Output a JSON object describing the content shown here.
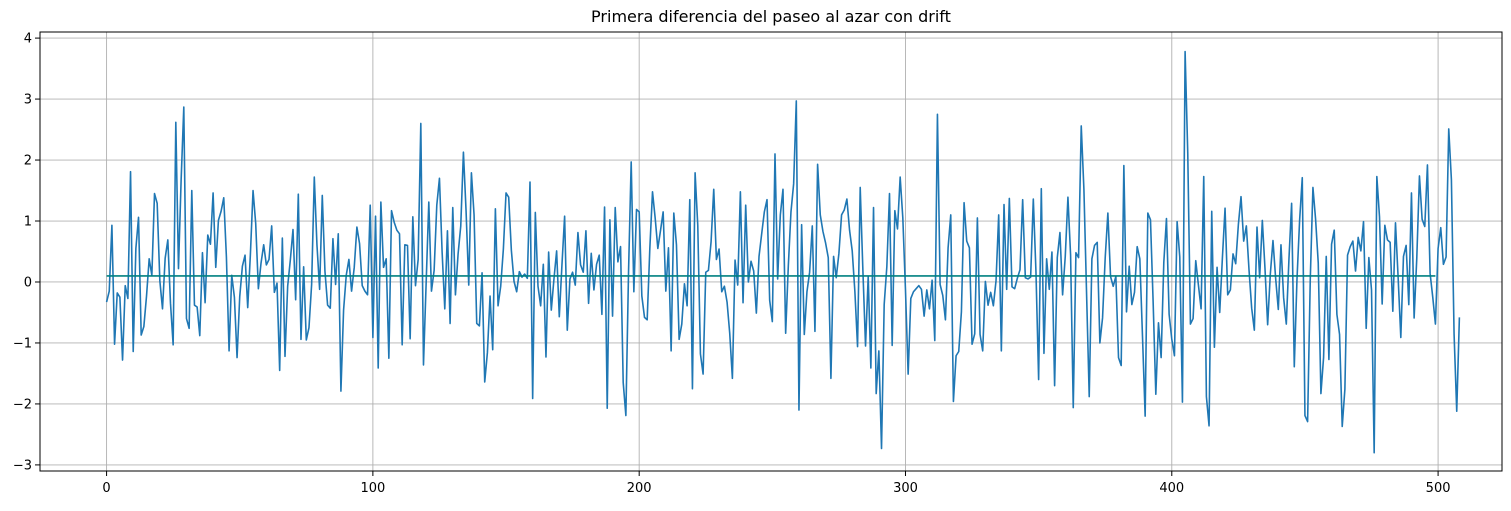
{
  "chart_data": {
    "type": "line",
    "title": "Primera diferencia del paseo al azar con drift",
    "xlabel": "",
    "ylabel": "",
    "xlim": [
      -25,
      524
    ],
    "ylim": [
      -3.1,
      4.1
    ],
    "xticks": [
      0,
      100,
      200,
      300,
      400,
      500
    ],
    "yticks": [
      -3,
      -2,
      -1,
      0,
      1,
      2,
      3,
      4
    ],
    "grid": true,
    "colors": {
      "series": "#1f77b4",
      "drift": "#008080",
      "grid": "#b0b0b0",
      "axes": "#000000"
    },
    "series": [
      {
        "x_start": 0,
        "values": [
          -0.33,
          -0.15,
          0.93,
          -1.02,
          -0.18,
          -0.25,
          -1.28,
          -0.06,
          -0.27,
          1.81,
          -1.14,
          0.55,
          1.06,
          -0.87,
          -0.73,
          -0.23,
          0.38,
          0.11,
          1.45,
          1.29,
          0.02,
          -0.44,
          0.39,
          0.69,
          -0.35,
          -1.03,
          2.62,
          0.22,
          1.68,
          2.87,
          -0.6,
          -0.76,
          1.5,
          -0.38,
          -0.41,
          -0.88,
          0.48,
          -0.34,
          0.77,
          0.62,
          1.46,
          0.24,
          1.01,
          1.16,
          1.38,
          0.41,
          -1.13,
          0.11,
          -0.25,
          -1.24,
          -0.24,
          0.26,
          0.44,
          -0.42,
          0.45,
          1.5,
          0.96,
          -0.11,
          0.31,
          0.61,
          0.28,
          0.37,
          0.92,
          -0.17,
          -0.02,
          -1.45,
          0.72,
          -1.22,
          -0.07,
          0.36,
          0.86,
          -0.29,
          1.44,
          -0.94,
          0.25,
          -0.95,
          -0.75,
          -0.04,
          1.72,
          0.61,
          -0.12,
          1.42,
          0.18,
          -0.38,
          -0.43,
          0.71,
          -0.04,
          0.79,
          -1.79,
          -0.46,
          0.11,
          0.37,
          -0.15,
          0.24,
          0.9,
          0.63,
          -0.06,
          -0.15,
          -0.21,
          1.26,
          -0.91,
          1.08,
          -1.41,
          1.31,
          0.24,
          0.38,
          -1.25,
          1.17,
          0.98,
          0.85,
          0.79,
          -1.03,
          0.61,
          0.6,
          -0.93,
          1.07,
          -0.06,
          0.37,
          2.6,
          -1.36,
          -0.02,
          1.31,
          -0.15,
          0.19,
          1.26,
          1.7,
          0.49,
          -0.44,
          0.84,
          -0.68,
          1.22,
          -0.21,
          0.46,
          0.92,
          2.13,
          1.16,
          -0.05,
          1.79,
          1.1,
          -0.68,
          -0.72,
          0.15,
          -1.64,
          -1.16,
          -0.23,
          -1.11,
          1.2,
          -0.39,
          -0.07,
          0.54,
          1.46,
          1.39,
          0.52,
          0.01,
          -0.16,
          0.17,
          0.08,
          0.13,
          0.06,
          1.64,
          -1.91,
          1.14,
          -0.07,
          -0.39,
          0.29,
          -1.23,
          0.49,
          -0.46,
          0.05,
          0.51,
          -0.57,
          0.28,
          1.08,
          -0.79,
          0.05,
          0.16,
          -0.05,
          0.81,
          0.28,
          0.16,
          0.84,
          -0.35,
          0.47,
          -0.13,
          0.29,
          0.44,
          -0.53,
          1.23,
          -2.07,
          1.02,
          -0.56,
          1.22,
          0.33,
          0.58,
          -1.65,
          -2.19,
          0.16,
          1.97,
          -0.16,
          1.19,
          1.15,
          -0.23,
          -0.58,
          -0.62,
          0.55,
          1.48,
          1.05,
          0.55,
          0.84,
          1.15,
          -0.15,
          0.56,
          -1.13,
          1.13,
          0.61,
          -0.94,
          -0.69,
          -0.03,
          -0.39,
          1.35,
          -1.75,
          1.79,
          0.93,
          -1.18,
          -1.51,
          0.16,
          0.19,
          0.66,
          1.52,
          0.37,
          0.54,
          -0.16,
          -0.07,
          -0.33,
          -0.84,
          -1.58,
          0.36,
          -0.05,
          1.48,
          -0.34,
          1.26,
          0.0,
          0.34,
          0.18,
          -0.51,
          0.42,
          0.79,
          1.15,
          1.35,
          -0.3,
          -0.65,
          2.1,
          0.05,
          1.1,
          1.52,
          -0.84,
          0.26,
          1.15,
          1.61,
          2.97,
          -2.1,
          0.94,
          -0.86,
          -0.16,
          0.16,
          0.92,
          -0.81,
          1.93,
          1.1,
          0.83,
          0.64,
          0.4,
          -1.58,
          0.42,
          0.07,
          0.47,
          1.1,
          1.18,
          1.36,
          0.85,
          0.51,
          -0.16,
          -1.06,
          1.55,
          0.2,
          -1.05,
          0.09,
          -1.41,
          1.22,
          -1.83,
          -1.13,
          -2.73,
          -0.37,
          0.25,
          1.45,
          -1.04,
          1.17,
          0.87,
          1.72,
          1.05,
          -0.13,
          -1.51,
          -0.27,
          -0.16,
          -0.11,
          -0.06,
          -0.12,
          -0.56,
          -0.13,
          -0.44,
          0.03,
          -0.96,
          2.75,
          -0.04,
          -0.22,
          -0.62,
          0.56,
          1.1,
          -1.96,
          -1.21,
          -1.14,
          -0.49,
          1.3,
          0.67,
          0.56,
          -1.02,
          -0.85,
          1.05,
          -0.86,
          -1.13,
          0.01,
          -0.38,
          -0.17,
          -0.39,
          0.02,
          1.1,
          -1.13,
          1.27,
          -0.12,
          1.37,
          -0.08,
          -0.11,
          0.06,
          0.2,
          1.35,
          0.07,
          0.05,
          0.08,
          1.36,
          0.16,
          -1.6,
          1.53,
          -1.17,
          0.38,
          -0.12,
          0.49,
          -1.7,
          0.4,
          0.81,
          -0.21,
          0.42,
          1.39,
          0.44,
          -2.06,
          0.48,
          0.4,
          2.56,
          1.52,
          -0.19,
          -1.88,
          0.38,
          0.6,
          0.65,
          -1.0,
          -0.59,
          0.4,
          1.13,
          0.09,
          -0.07,
          0.09,
          -1.24,
          -1.37,
          1.91,
          -0.49,
          0.26,
          -0.37,
          -0.17,
          0.58,
          0.38,
          -0.89,
          -2.2,
          1.13,
          1.02,
          -0.33,
          -1.84,
          -0.67,
          -1.24,
          0.32,
          1.04,
          -0.53,
          -0.94,
          -1.21,
          0.99,
          0.41,
          -1.97,
          3.78,
          2.11,
          -0.69,
          -0.6,
          0.35,
          -0.05,
          -0.44,
          1.73,
          -1.88,
          -2.36,
          1.16,
          -1.07,
          0.24,
          -0.5,
          0.39,
          1.21,
          -0.21,
          -0.13,
          0.46,
          0.3,
          0.94,
          1.4,
          0.67,
          0.92,
          0.2,
          -0.43,
          -0.79,
          0.9,
          0.07,
          1.01,
          0.22,
          -0.7,
          0.13,
          0.68,
          0.06,
          -0.45,
          0.61,
          -0.26,
          -0.69,
          0.38,
          1.29,
          -1.39,
          0.03,
          1.01,
          1.71,
          -2.19,
          -2.29,
          0.04,
          1.55,
          1.03,
          0.31,
          -1.83,
          -1.24,
          0.42,
          -1.27,
          0.62,
          0.85,
          -0.53,
          -0.86,
          -2.37,
          -1.76,
          0.44,
          0.58,
          0.67,
          0.18,
          0.73,
          0.51,
          0.99,
          -0.76,
          0.4,
          -0.13,
          -2.8,
          1.73,
          1.07,
          -0.36,
          0.93,
          0.69,
          0.65,
          -0.48,
          0.97,
          0.07,
          -0.91,
          0.42,
          0.6,
          -0.37,
          1.46,
          -0.59,
          0.39,
          1.74,
          1.03,
          0.91,
          1.92,
          0.14,
          -0.25,
          -0.69,
          0.55,
          0.89,
          0.29,
          0.41,
          2.51,
          1.68,
          -0.85,
          -2.12,
          -0.58
        ]
      },
      {
        "x": [
          0,
          499
        ],
        "values": [
          0.1,
          0.1
        ]
      }
    ]
  }
}
